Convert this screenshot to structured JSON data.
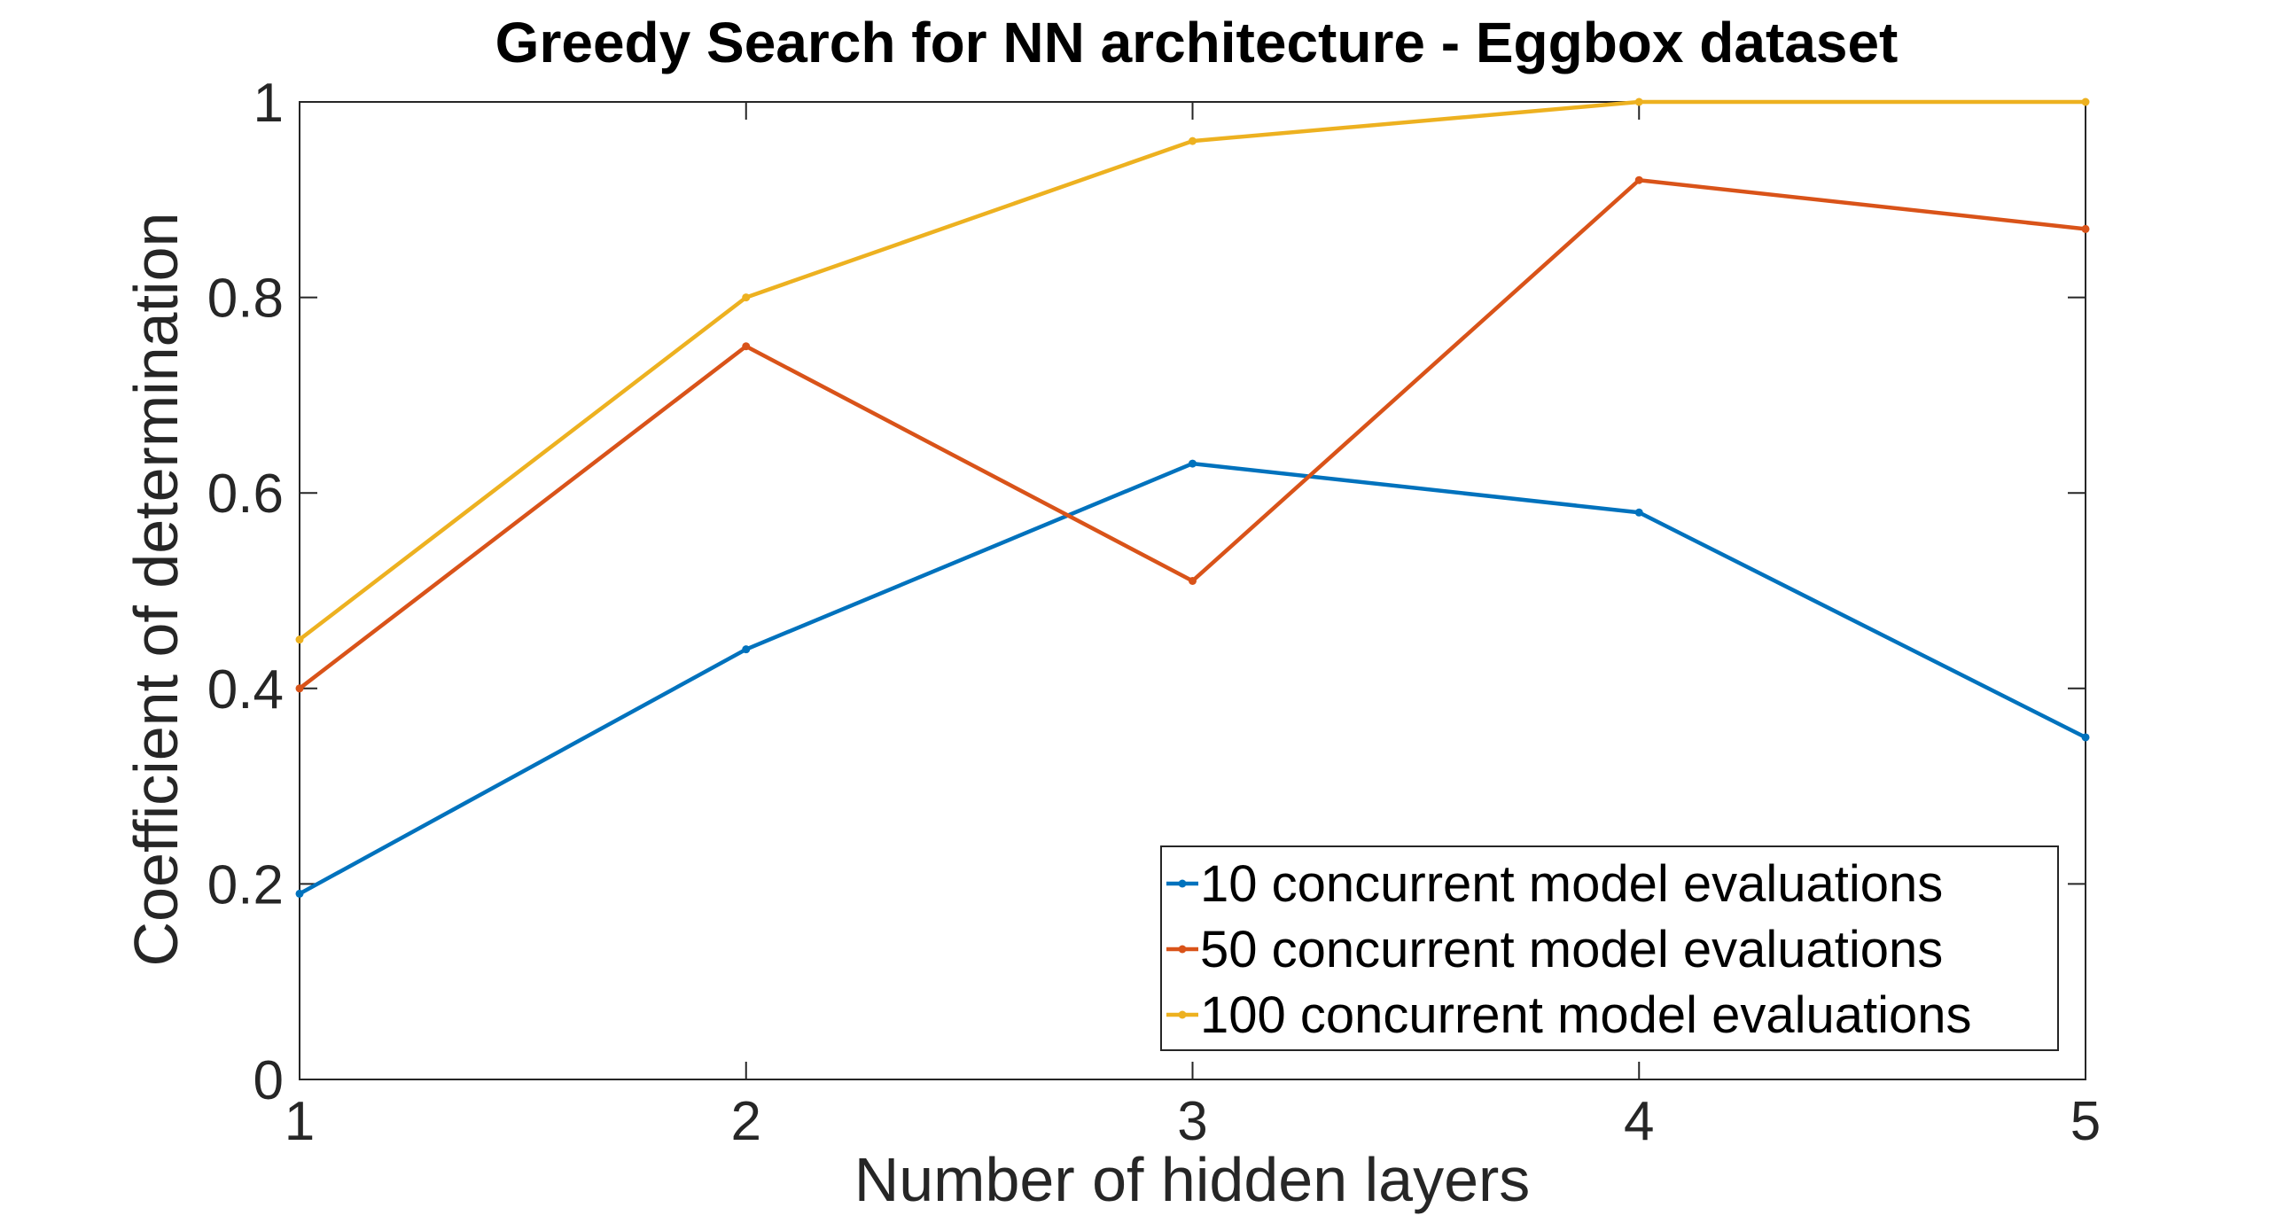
{
  "chart_data": {
    "type": "line",
    "title": "Greedy Search for NN architecture - Eggbox dataset",
    "xlabel": "Number of hidden layers",
    "ylabel": "Coefficient of determination",
    "x": [
      1,
      2,
      3,
      4,
      5
    ],
    "xlim": [
      1,
      5
    ],
    "ylim": [
      0,
      1
    ],
    "xticks": [
      "1",
      "2",
      "3",
      "4",
      "5"
    ],
    "yticks": [
      "0",
      "0.2",
      "0.4",
      "0.6",
      "0.8",
      "1"
    ],
    "grid": false,
    "legend_position": "bottom-right",
    "series": [
      {
        "name": "10 concurrent model evaluations",
        "color": "#0072BD",
        "values": [
          0.19,
          0.44,
          0.63,
          0.58,
          0.35
        ]
      },
      {
        "name": "50 concurrent model evaluations",
        "color": "#D95319",
        "values": [
          0.4,
          0.75,
          0.51,
          0.92,
          0.87
        ]
      },
      {
        "name": "100 concurrent model evaluations",
        "color": "#EDB120",
        "values": [
          0.45,
          0.8,
          0.96,
          1.0,
          1.0
        ]
      }
    ]
  }
}
